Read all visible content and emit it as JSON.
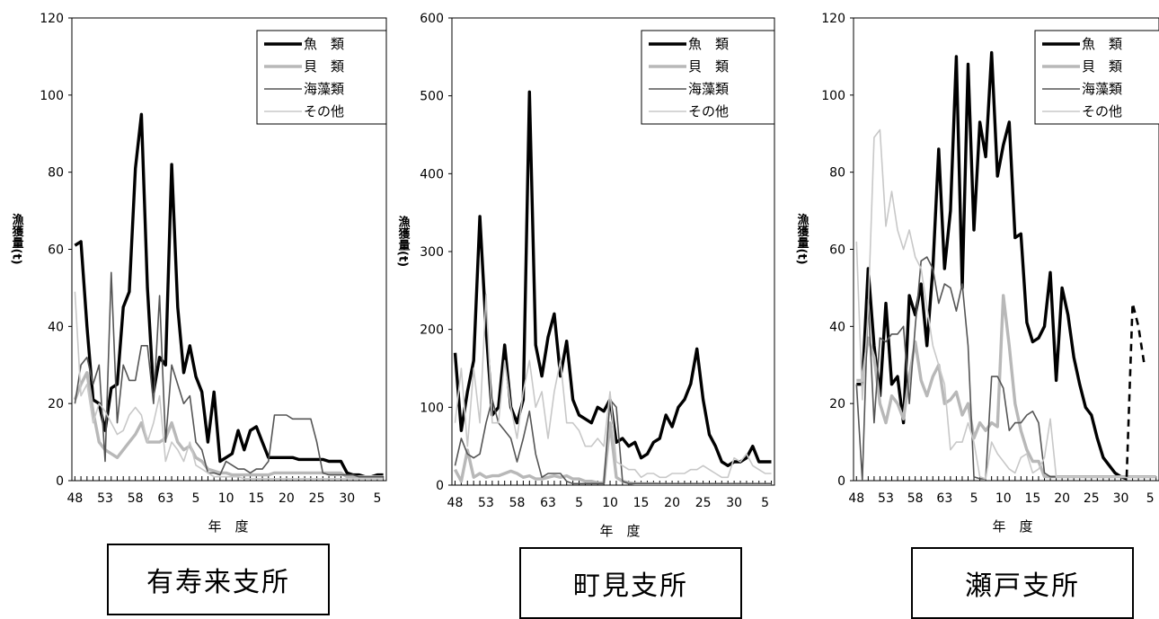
{
  "chart_data": [
    {
      "type": "line",
      "caption": "有寿来支所",
      "xlabel": "年　度",
      "ylabel": "漁獲量(t)",
      "ylim": [
        0,
        120
      ],
      "yticks": [
        0,
        20,
        40,
        60,
        80,
        100,
        120
      ],
      "xtick_labels": [
        "48",
        "53",
        "58",
        "63",
        "5",
        "10",
        "15",
        "20",
        "25",
        "30",
        "5"
      ],
      "x": [
        48,
        49,
        50,
        51,
        52,
        53,
        54,
        55,
        56,
        57,
        58,
        59,
        60,
        61,
        62,
        63,
        64,
        65,
        66,
        67,
        68,
        69,
        70,
        71,
        72,
        73,
        74,
        75,
        76,
        77,
        78,
        79,
        80,
        81,
        82,
        83,
        84,
        85,
        86,
        87,
        88,
        89,
        90,
        91,
        92,
        93,
        94,
        95,
        96,
        97,
        98,
        99
      ],
      "legend": [
        "魚　類",
        "貝　類",
        "海藻類",
        "その他"
      ],
      "series": [
        {
          "name": "魚　類",
          "values": [
            61,
            62,
            40,
            21,
            20,
            13,
            24,
            25,
            45,
            49,
            81,
            95,
            50,
            23,
            32,
            30,
            82,
            45,
            28,
            35,
            27,
            23,
            10,
            23,
            5,
            6,
            7,
            13,
            8,
            13,
            14,
            10,
            6,
            6,
            6,
            6,
            6,
            5.5,
            5.5,
            5.5,
            5.5,
            5.5,
            5,
            5,
            5,
            2,
            1.5,
            1.5,
            1,
            1,
            1.5,
            1.5
          ]
        },
        {
          "name": "貝　類",
          "values": [
            21,
            25,
            28,
            18,
            10,
            8,
            7,
            6,
            8,
            10,
            12,
            15,
            10,
            10,
            10,
            11,
            15,
            10,
            8,
            9,
            6,
            5,
            3,
            2.5,
            2,
            2,
            1.5,
            1.5,
            1.5,
            1.5,
            1.5,
            1.5,
            1.5,
            2,
            2,
            2,
            2,
            2,
            2,
            2,
            2,
            2,
            2,
            2,
            2,
            1,
            1,
            1,
            1,
            1,
            1,
            1
          ]
        },
        {
          "name": "海藻類",
          "values": [
            20,
            30,
            32,
            25,
            30,
            5,
            54,
            15,
            30,
            26,
            26,
            35,
            35,
            20,
            48,
            10,
            30,
            25,
            20,
            22,
            10,
            8,
            2,
            2,
            1.5,
            5,
            4,
            3,
            3,
            2,
            3,
            3,
            5,
            17,
            17,
            17,
            16,
            16,
            16,
            16,
            10,
            2,
            1.5,
            1.5,
            1.5,
            1.5,
            1.5,
            1,
            1,
            1,
            1,
            1
          ]
        },
        {
          "name": "その他",
          "values": [
            49,
            22,
            25,
            15,
            20,
            18,
            15,
            12,
            13,
            17,
            19,
            17,
            10,
            15,
            22,
            5,
            10,
            8,
            5,
            10,
            4,
            3,
            2,
            1,
            1,
            1,
            1,
            1,
            0.5,
            0.5,
            0.5,
            0.5,
            0.5,
            0.5,
            0.5,
            0.5,
            0.5,
            0.5,
            0.5,
            0.5,
            0.5,
            0.5,
            0.5,
            0.5,
            0.5,
            0.5,
            0.5,
            0.5,
            0.5,
            0.5,
            0.5,
            0.5
          ]
        }
      ]
    },
    {
      "type": "line",
      "caption": "町見支所",
      "xlabel": "年　度",
      "ylabel": "漁獲量(t)",
      "ylim": [
        0,
        600
      ],
      "yticks": [
        0,
        100,
        200,
        300,
        400,
        500,
        600
      ],
      "xtick_labels": [
        "48",
        "53",
        "58",
        "63",
        "5",
        "10",
        "15",
        "20",
        "25",
        "30",
        "5"
      ],
      "x": [
        48,
        49,
        50,
        51,
        52,
        53,
        54,
        55,
        56,
        57,
        58,
        59,
        60,
        61,
        62,
        63,
        64,
        65,
        66,
        67,
        68,
        69,
        70,
        71,
        72,
        73,
        74,
        75,
        76,
        77,
        78,
        79,
        80,
        81,
        82,
        83,
        84,
        85,
        86,
        87,
        88,
        89,
        90,
        91,
        92,
        93,
        94,
        95,
        96,
        97,
        98,
        99
      ],
      "legend": [
        "魚　類",
        "貝　類",
        "海藻類",
        "その他"
      ],
      "series": [
        {
          "name": "魚　類",
          "values": [
            170,
            70,
            120,
            160,
            345,
            200,
            90,
            100,
            180,
            100,
            80,
            110,
            505,
            180,
            140,
            190,
            220,
            140,
            185,
            110,
            90,
            85,
            80,
            100,
            95,
            110,
            55,
            60,
            50,
            55,
            35,
            40,
            55,
            60,
            90,
            75,
            100,
            110,
            130,
            175,
            110,
            65,
            50,
            30,
            25,
            30,
            30,
            35,
            50,
            30,
            30,
            30
          ]
        },
        {
          "name": "貝　類",
          "values": [
            20,
            5,
            45,
            10,
            15,
            10,
            12,
            12,
            15,
            18,
            15,
            10,
            12,
            8,
            8,
            10,
            12,
            10,
            12,
            8,
            8,
            5,
            5,
            3,
            3,
            80,
            10,
            5,
            3,
            2,
            2,
            2,
            2,
            1,
            1,
            1,
            1,
            1,
            1,
            1,
            1,
            1,
            1,
            1,
            1,
            1,
            1,
            1,
            1,
            1,
            1,
            1
          ]
        },
        {
          "name": "海藻類",
          "values": [
            25,
            60,
            40,
            35,
            40,
            80,
            110,
            80,
            70,
            60,
            30,
            60,
            95,
            40,
            10,
            15,
            15,
            15,
            5,
            2,
            2,
            2,
            2,
            2,
            2,
            110,
            100,
            5,
            2,
            2,
            2,
            2,
            2,
            2,
            2,
            2,
            2,
            2,
            2,
            2,
            2,
            2,
            2,
            2,
            2,
            2,
            2,
            2,
            2,
            2,
            2,
            2
          ]
        },
        {
          "name": "その他",
          "values": [
            80,
            150,
            50,
            150,
            80,
            245,
            80,
            80,
            160,
            100,
            60,
            120,
            160,
            100,
            120,
            60,
            120,
            160,
            80,
            80,
            70,
            50,
            50,
            60,
            50,
            120,
            30,
            25,
            20,
            20,
            10,
            15,
            15,
            10,
            10,
            15,
            15,
            15,
            20,
            20,
            25,
            20,
            15,
            10,
            10,
            35,
            30,
            40,
            25,
            20,
            15,
            15
          ]
        }
      ]
    },
    {
      "type": "line",
      "caption": "瀬戸支所",
      "xlabel": "年　度",
      "ylabel": "漁獲量(t)",
      "ylim": [
        0,
        120
      ],
      "yticks": [
        0,
        20,
        40,
        60,
        80,
        100,
        120
      ],
      "xtick_labels": [
        "48",
        "53",
        "58",
        "63",
        "5",
        "10",
        "15",
        "20",
        "25",
        "30",
        "5"
      ],
      "x": [
        48,
        49,
        50,
        51,
        52,
        53,
        54,
        55,
        56,
        57,
        58,
        59,
        60,
        61,
        62,
        63,
        64,
        65,
        66,
        67,
        68,
        69,
        70,
        71,
        72,
        73,
        74,
        75,
        76,
        77,
        78,
        79,
        80,
        81,
        82,
        83,
        84,
        85,
        86,
        87,
        88,
        89,
        90,
        91,
        92,
        93,
        94,
        95,
        96,
        97,
        98,
        99
      ],
      "legend": [
        "魚　類",
        "貝　類",
        "海藻類",
        "その他"
      ],
      "series": [
        {
          "name": "魚　類",
          "values": [
            25,
            25,
            55,
            35,
            22,
            46,
            25,
            27,
            15,
            48,
            43,
            51,
            35,
            55,
            86,
            55,
            70,
            110,
            50,
            108,
            65,
            93,
            84,
            111,
            79,
            87,
            93,
            63,
            64,
            41,
            36,
            37,
            40,
            54,
            26,
            50,
            43,
            32,
            25,
            19,
            17,
            11,
            6,
            4,
            2,
            1,
            0.5,
            null,
            null,
            null,
            null,
            null
          ]
        },
        {
          "name": "貝　類",
          "values": [
            26,
            26,
            37,
            32,
            20,
            15,
            22,
            20,
            16,
            27,
            36,
            26,
            22,
            27,
            30,
            20,
            21,
            23,
            17,
            20,
            11,
            15,
            13,
            15,
            14,
            48,
            35,
            20,
            13,
            8,
            5,
            5,
            1,
            1,
            1,
            1,
            1,
            1,
            1,
            1,
            1,
            1,
            1,
            1,
            1,
            1,
            1,
            1,
            1,
            1,
            1,
            1
          ]
        },
        {
          "name": "海藻類",
          "values": [
            25,
            0,
            47,
            15,
            37,
            36,
            38,
            38,
            40,
            20,
            40,
            57,
            58,
            55,
            46,
            51,
            50,
            44,
            51,
            35,
            1,
            0.5,
            0.5,
            27,
            27,
            24,
            13,
            15,
            15,
            17,
            18,
            15,
            2,
            1,
            1,
            1,
            1,
            1,
            1,
            1,
            1,
            1,
            1,
            1,
            1,
            1,
            1,
            1,
            1,
            1,
            1,
            1
          ]
        },
        {
          "name": "その他",
          "values": [
            62,
            21,
            44,
            89,
            91,
            66,
            75,
            65,
            60,
            65,
            58,
            55,
            45,
            35,
            30,
            25,
            8,
            10,
            10,
            15,
            10,
            1,
            0.5,
            10,
            7,
            5,
            3,
            2,
            6,
            7,
            2,
            3,
            6,
            16,
            1,
            1,
            1,
            1,
            1,
            1,
            1,
            1,
            1,
            1,
            1,
            1,
            1,
            1,
            1,
            1,
            1,
            1
          ]
        },
        {
          "name": "",
          "dashed": true,
          "values": [
            null,
            null,
            null,
            null,
            null,
            null,
            null,
            null,
            null,
            null,
            null,
            null,
            null,
            null,
            null,
            null,
            null,
            null,
            null,
            null,
            null,
            null,
            null,
            null,
            null,
            null,
            null,
            null,
            null,
            null,
            null,
            null,
            null,
            null,
            null,
            null,
            null,
            null,
            null,
            null,
            null,
            null,
            null,
            null,
            null,
            null,
            1,
            46,
            40,
            30,
            null,
            null
          ]
        }
      ]
    }
  ]
}
